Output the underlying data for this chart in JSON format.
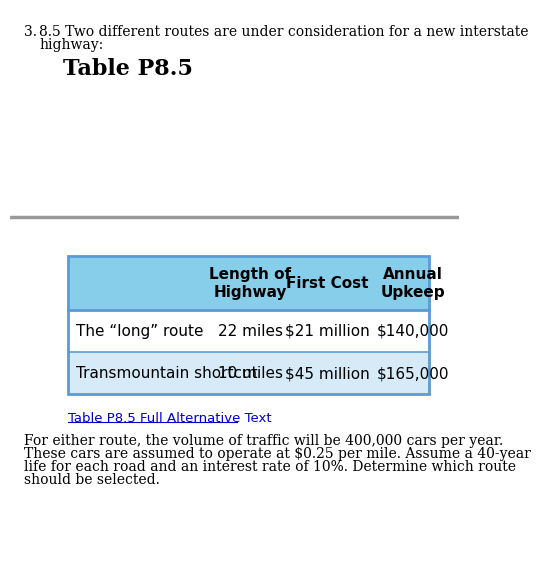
{
  "title_number": "3.",
  "problem_text_line1": "8.5 Two different routes are under consideration for a new interstate",
  "problem_text_line2": "highway:",
  "table_title": "Table P8.5",
  "header_col1": "Length of\nHighway",
  "header_col2": "First Cost",
  "header_col3": "Annual\nUpkeep",
  "table_rows": [
    [
      "The “long” route",
      "22 miles",
      "$21 million",
      "$140,000"
    ],
    [
      "Transmountain shortcut",
      "10 miles",
      "$45 million",
      "$165,000"
    ]
  ],
  "alt_text_link": "Table P8.5 Full Alternative Text",
  "footer_text_line1": "For either route, the volume of traffic will be 400,000 cars per year.",
  "footer_text_line2": "These cars are assumed to operate at $0.25 per mile. Assume a 40-year",
  "footer_text_line3": "life for each road and an interest rate of 10%. Determine which route",
  "footer_text_line4": "should be selected.",
  "header_bg_color": "#87CEEB",
  "row1_bg_color": "#FFFFFF",
  "row2_bg_color": "#D6EAF8",
  "table_border_color": "#5B9BD5",
  "separator_line_color": "#999999",
  "link_color": "#0000CD",
  "text_color": "#000000",
  "bg_color": "#FFFFFF"
}
